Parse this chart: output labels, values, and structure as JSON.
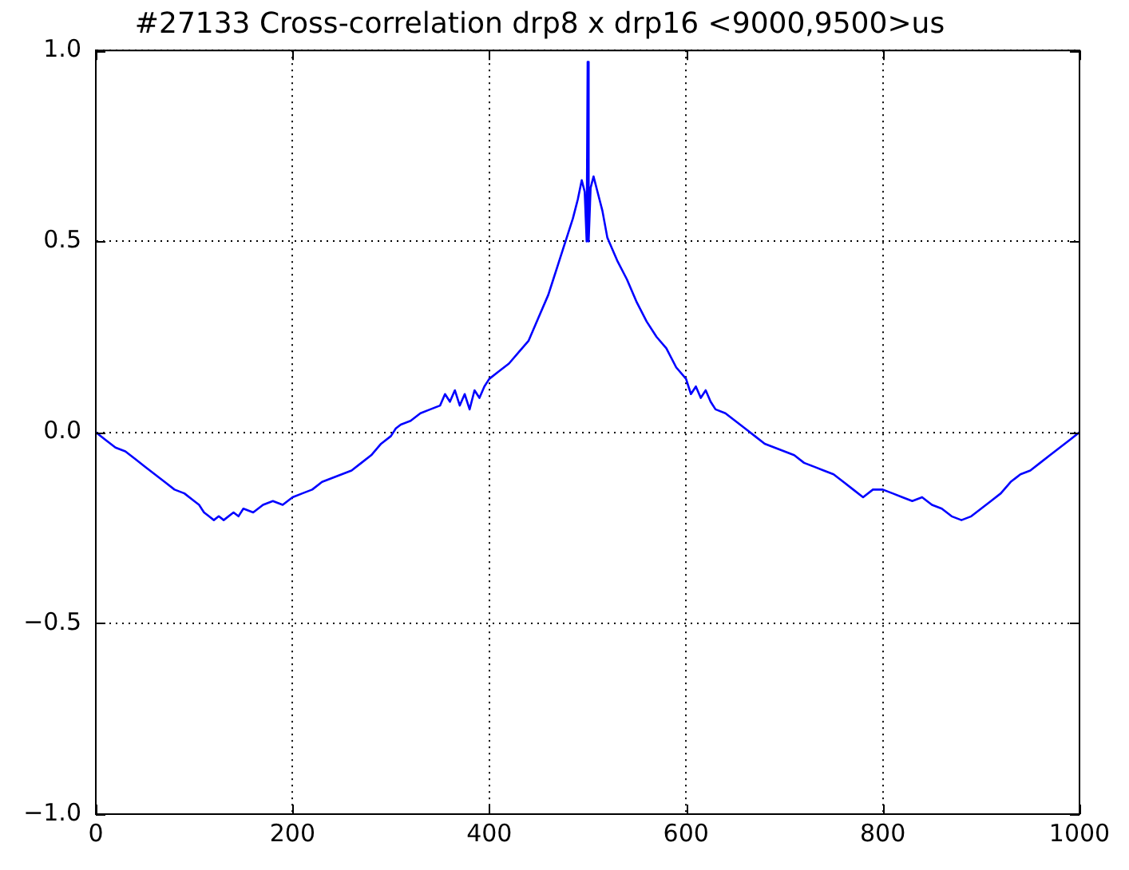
{
  "chart_data": {
    "type": "line",
    "title": "#27133 Cross-correlation drp8 x drp16 <9000,9500>us",
    "x": [
      0,
      10,
      20,
      30,
      40,
      50,
      60,
      70,
      80,
      90,
      100,
      105,
      110,
      115,
      120,
      125,
      130,
      140,
      145,
      150,
      160,
      170,
      180,
      190,
      200,
      210,
      220,
      230,
      240,
      250,
      260,
      270,
      280,
      290,
      300,
      305,
      310,
      320,
      330,
      340,
      350,
      355,
      360,
      365,
      370,
      375,
      380,
      385,
      390,
      395,
      400,
      410,
      420,
      430,
      440,
      450,
      460,
      465,
      470,
      475,
      480,
      485,
      490,
      494,
      497,
      499,
      500,
      501,
      503,
      506,
      510,
      515,
      520,
      525,
      530,
      540,
      550,
      560,
      570,
      580,
      590,
      600,
      605,
      610,
      615,
      620,
      625,
      630,
      640,
      650,
      660,
      670,
      680,
      690,
      700,
      710,
      720,
      730,
      740,
      750,
      760,
      770,
      780,
      790,
      800,
      810,
      820,
      830,
      840,
      850,
      860,
      870,
      880,
      890,
      900,
      910,
      920,
      930,
      940,
      950,
      960,
      970,
      980,
      990,
      1000
    ],
    "series": [
      {
        "color": "#0000ff",
        "values": [
          0,
          -0.02,
          -0.04,
          -0.05,
          -0.07,
          -0.09,
          -0.11,
          -0.13,
          -0.15,
          -0.16,
          -0.18,
          -0.19,
          -0.21,
          -0.22,
          -0.23,
          -0.22,
          -0.23,
          -0.21,
          -0.22,
          -0.2,
          -0.21,
          -0.19,
          -0.18,
          -0.19,
          -0.17,
          -0.16,
          -0.15,
          -0.13,
          -0.12,
          -0.11,
          -0.1,
          -0.08,
          -0.06,
          -0.03,
          -0.01,
          0.01,
          0.02,
          0.03,
          0.05,
          0.06,
          0.07,
          0.1,
          0.08,
          0.11,
          0.07,
          0.1,
          0.06,
          0.11,
          0.09,
          0.12,
          0.14,
          0.16,
          0.18,
          0.21,
          0.24,
          0.3,
          0.36,
          0.4,
          0.44,
          0.48,
          0.52,
          0.56,
          0.61,
          0.66,
          0.63,
          0.5,
          0.97,
          0.5,
          0.64,
          0.67,
          0.63,
          0.58,
          0.51,
          0.48,
          0.45,
          0.4,
          0.34,
          0.29,
          0.25,
          0.22,
          0.17,
          0.14,
          0.1,
          0.12,
          0.09,
          0.11,
          0.08,
          0.06,
          0.05,
          0.03,
          0.01,
          -0.01,
          -0.03,
          -0.04,
          -0.05,
          -0.06,
          -0.08,
          -0.09,
          -0.1,
          -0.11,
          -0.13,
          -0.15,
          -0.17,
          -0.15,
          -0.15,
          -0.16,
          -0.17,
          -0.18,
          -0.17,
          -0.19,
          -0.2,
          -0.22,
          -0.23,
          -0.22,
          -0.2,
          -0.18,
          -0.16,
          -0.13,
          -0.11,
          -0.1,
          -0.08,
          -0.06,
          -0.04,
          -0.02,
          0
        ]
      }
    ],
    "xlim": [
      0,
      1000
    ],
    "xticks": [
      0,
      200,
      400,
      600,
      800,
      1000
    ],
    "ylim": [
      -1,
      1
    ],
    "yticks": [
      {
        "value": -1,
        "label": "−1.0"
      },
      {
        "value": -0.5,
        "label": "−0.5"
      },
      {
        "value": 0,
        "label": "0.0"
      },
      {
        "value": 0.5,
        "label": "0.5"
      },
      {
        "value": 1,
        "label": "1.0"
      }
    ],
    "grid": true
  }
}
